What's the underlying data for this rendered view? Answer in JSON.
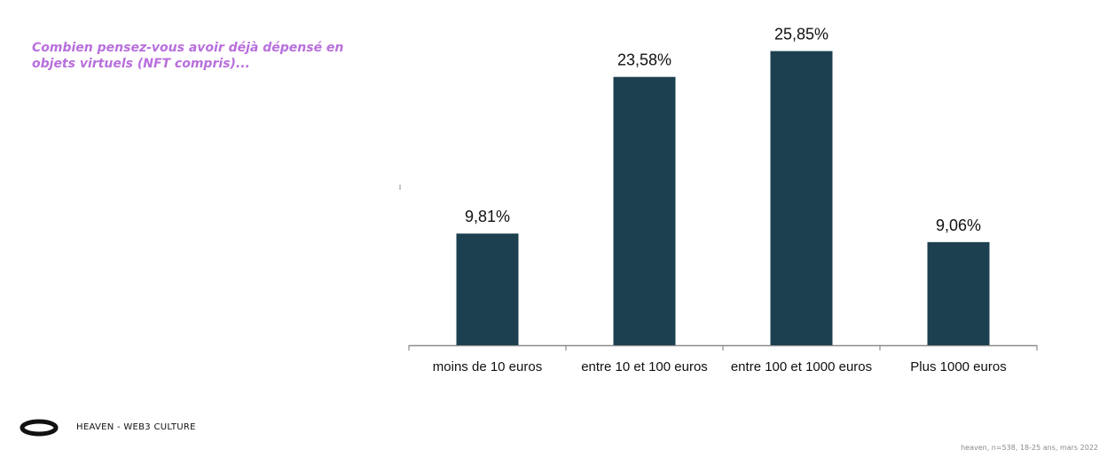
{
  "question": "Combien pensez-vous avoir déjà dépensé en objets virtuels (NFT compris)...",
  "brand": {
    "logo_icon": "ring-logo-icon",
    "label": "HEAVEN - WEB3 CULTURE"
  },
  "source_note": "heaven, n=538, 18-25 ans, mars 2022",
  "colors": {
    "bar": "#1c4050",
    "question": "#b86fdc",
    "axis": "#8c8c8c"
  },
  "chart_data": {
    "type": "bar",
    "title": "",
    "xlabel": "",
    "ylabel": "",
    "categories": [
      "moins de 10 euros",
      "entre 10 et 100 euros",
      "entre 100 et 1000 euros",
      "Plus 1000 euros"
    ],
    "values": [
      9.81,
      23.58,
      25.85,
      9.06
    ],
    "data_labels": [
      "9,81%",
      "23,58%",
      "25,85%",
      "9,06%"
    ],
    "unit": "%",
    "ylim": [
      0,
      28
    ],
    "grid": false,
    "legend": "none"
  }
}
